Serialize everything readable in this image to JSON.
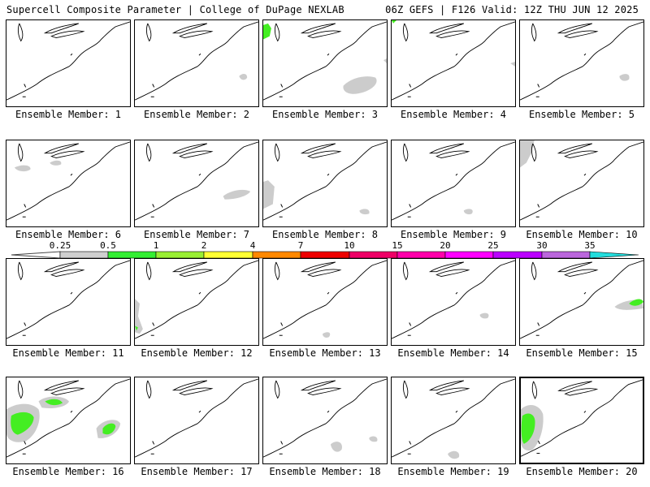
{
  "title_left": "Supercell Composite Parameter | College of DuPage NEXLAB",
  "title_right": "06Z GEFS | F126 Valid: 12Z THU JUN 12 2025",
  "member_label_prefix": "Ensemble Member: ",
  "members": [
    1,
    2,
    3,
    4,
    5,
    6,
    7,
    8,
    9,
    10,
    11,
    12,
    13,
    14,
    15,
    16,
    17,
    18,
    19,
    20
  ],
  "highlighted_member": 20,
  "colorbar": {
    "ticks": [
      "0.25",
      "0.5",
      "1",
      "2",
      "4",
      "7",
      "10",
      "15",
      "20",
      "25",
      "30",
      "35"
    ],
    "colors": [
      "#cfcfcf",
      "#33ee33",
      "#99ee33",
      "#ffff33",
      "#ff8800",
      "#ee0000",
      "#ee0066",
      "#ff00aa",
      "#ff00ff",
      "#bb00ff",
      "#bb66dd",
      "#22dddd"
    ]
  }
}
